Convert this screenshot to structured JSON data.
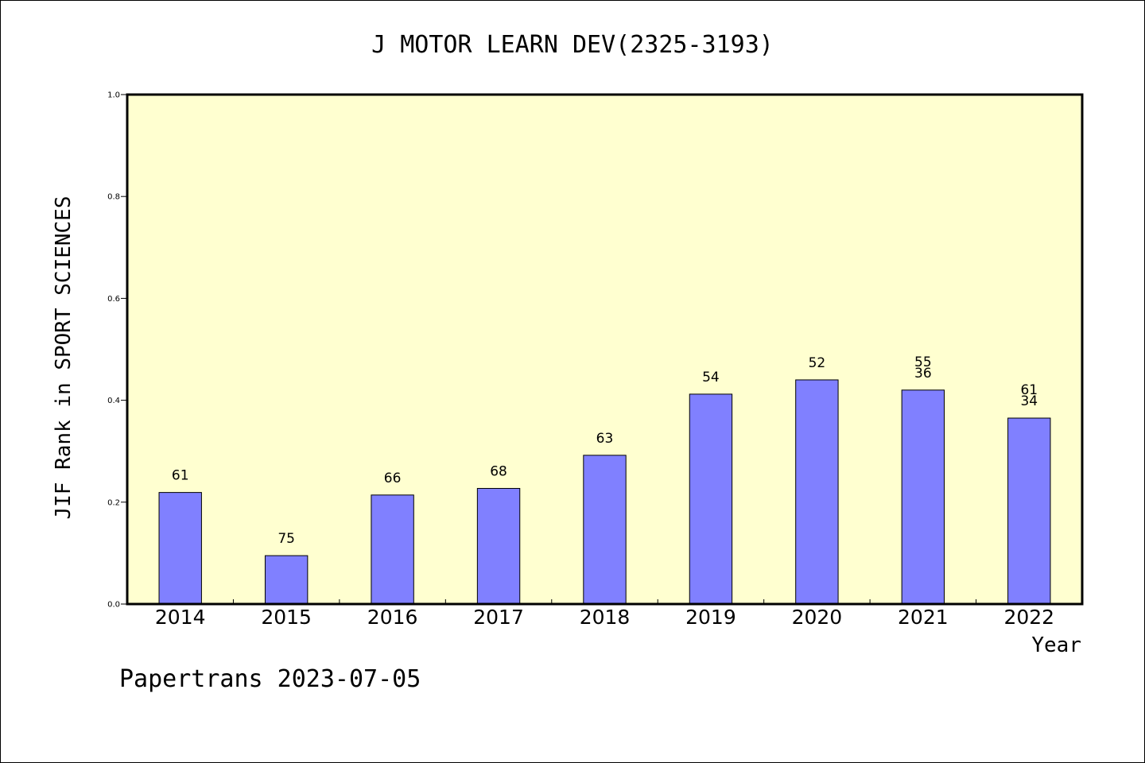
{
  "chart_data": {
    "type": "bar",
    "title": "J MOTOR LEARN DEV(2325-3193)",
    "xlabel": "Year",
    "ylabel": "JIF Rank in SPORT SCIENCES",
    "ylim": [
      0,
      1
    ],
    "yticks": [
      "0.0",
      "0.2",
      "0.4",
      "0.6",
      "0.8",
      "1.0"
    ],
    "categories": [
      "2014",
      "2015",
      "2016",
      "2017",
      "2018",
      "2019",
      "2020",
      "2021",
      "2022"
    ],
    "values": [
      0.219,
      0.095,
      0.214,
      0.227,
      0.292,
      0.412,
      0.44,
      0.42,
      0.365
    ],
    "bar_labels": [
      [
        "61"
      ],
      [
        "75"
      ],
      [
        "66"
      ],
      [
        "68"
      ],
      [
        "63"
      ],
      [
        "54"
      ],
      [
        "52"
      ],
      [
        "55",
        "36"
      ],
      [
        "61",
        "34"
      ]
    ],
    "bar_color": "#8080ff",
    "plot_background": "#ffffd0",
    "grid": false,
    "legend": "none"
  },
  "footer": "Papertrans 2023-07-05"
}
